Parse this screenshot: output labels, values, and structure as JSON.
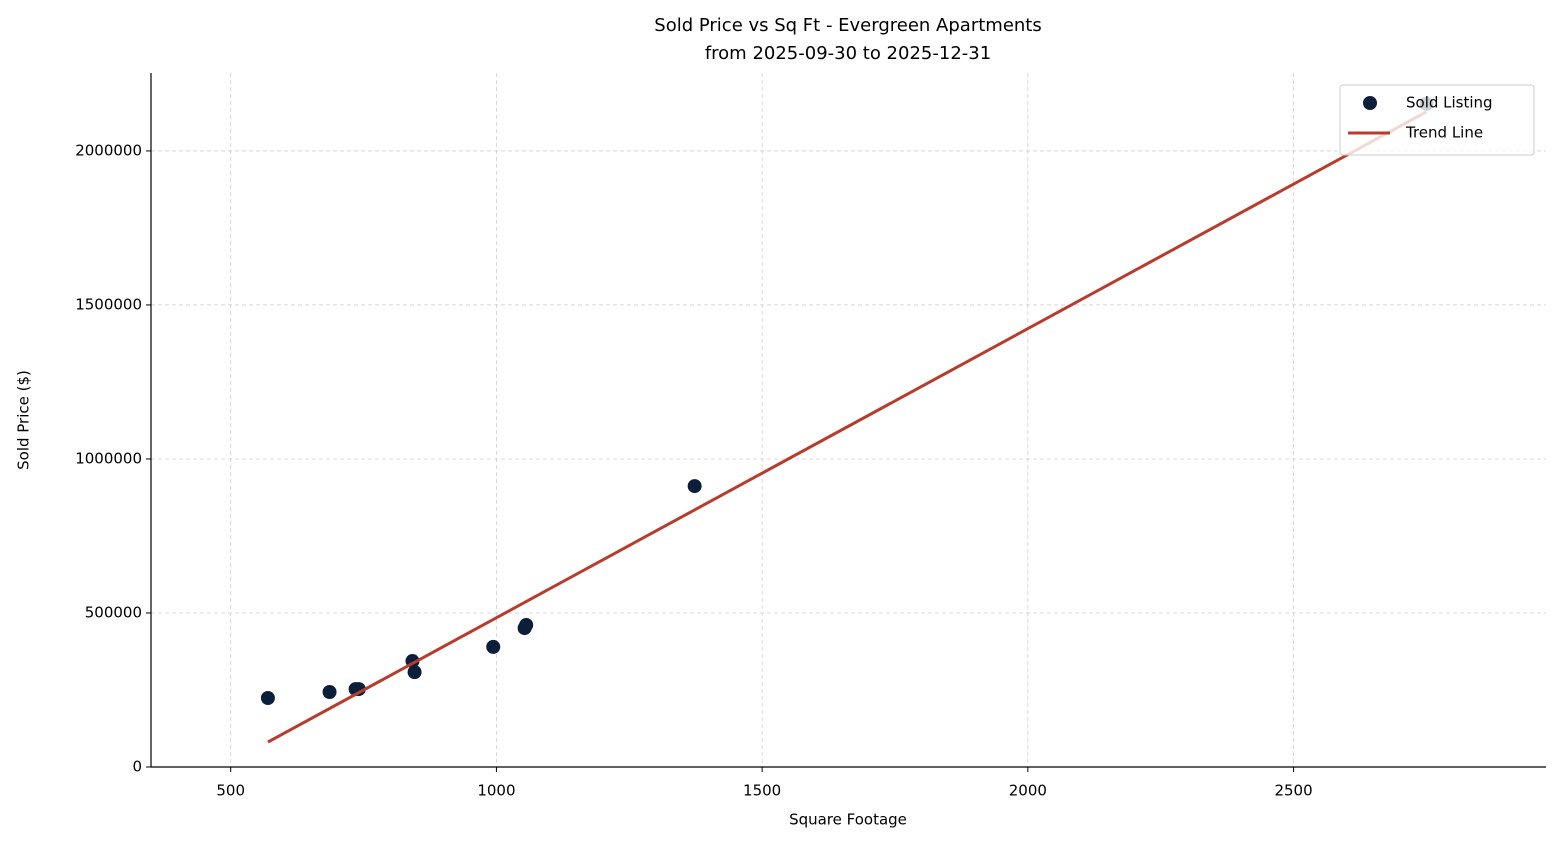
{
  "chart_data": {
    "type": "scatter",
    "title": "Sold Price vs Sq Ft - Evergreen Apartments",
    "subtitle": "from 2025-09-30 to 2025-12-31",
    "x_label": "Square Footage",
    "y_label": "Sold Price ($)",
    "xlim": [
      350,
      2975
    ],
    "ylim": [
      0,
      2253000
    ],
    "xticks": [
      500,
      1000,
      1500,
      2000,
      2500
    ],
    "yticks": [
      0,
      500000,
      1000000,
      1500000,
      2000000
    ],
    "grid": true,
    "legend": "upper right",
    "series": [
      {
        "name": "Sold Listing",
        "type": "scatter",
        "color": "#0b1f3a",
        "x": [
          570,
          686,
          735,
          741,
          842,
          846,
          994,
          1053,
          1056,
          1373,
          2750
        ],
        "values": [
          224000,
          243500,
          253000,
          253000,
          344000,
          308000,
          390000,
          451000,
          461000,
          912000,
          2152600
        ]
      },
      {
        "name": "Trend Line",
        "type": "line",
        "color": "#b83c2d",
        "x": [
          570,
          2750
        ],
        "values": [
          81000,
          2127000
        ]
      }
    ]
  }
}
